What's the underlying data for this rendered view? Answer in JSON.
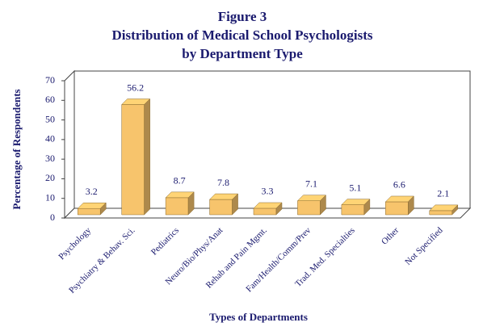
{
  "chart_data": {
    "type": "bar3d",
    "title": [
      "Figure 3",
      "Distribution of Medical School Psychologists",
      "by Department Type"
    ],
    "x_label": "Types of Departments",
    "y_label": "Percentage of Respondents",
    "categories": [
      "Psychology",
      "Psychiatry & Behav. Sci.",
      "Pediatrics",
      "Neuro/Bio/Phys/Anat",
      "Rehab and Pain Mgmt.",
      "Fam/Health/Comm/Prev",
      "Trad. Med. Specialties",
      "Other",
      "Not Specified"
    ],
    "values": [
      3.2,
      56.2,
      8.7,
      7.8,
      3.3,
      7.1,
      5.1,
      6.6,
      2.1
    ],
    "color": "#f7c46c",
    "ylim": [
      0,
      70
    ],
    "yticks": [
      0,
      10,
      20,
      30,
      40,
      50,
      60,
      70
    ]
  }
}
